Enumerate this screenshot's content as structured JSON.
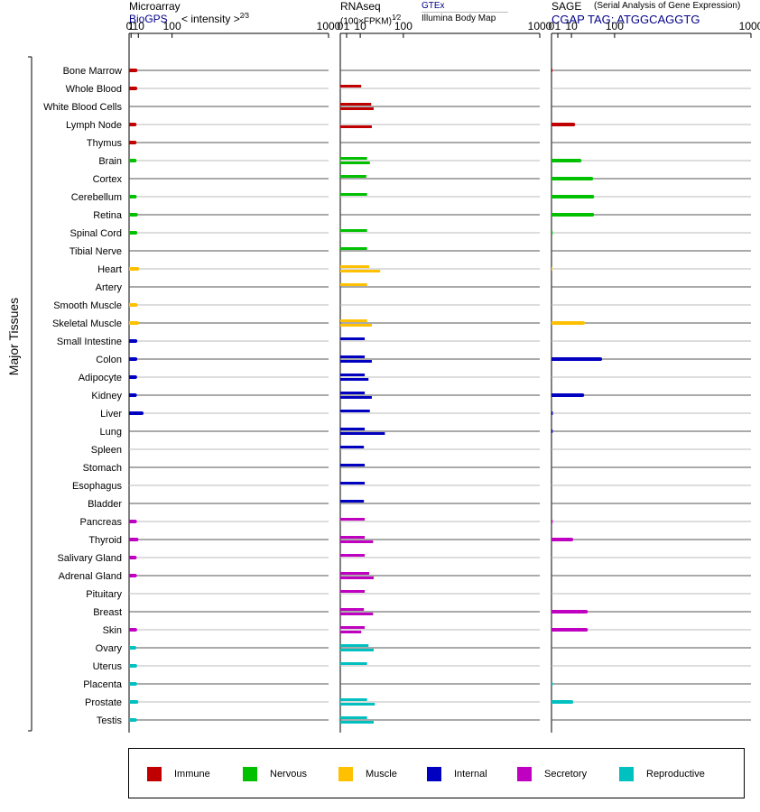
{
  "panels": {
    "microarray": {
      "title": "Microarray",
      "source": "BioGPS",
      "units": "< intensity >",
      "units_exp": "2⁄3"
    },
    "rnaseq": {
      "title": "RNAseq",
      "units": "(100×FPKM)",
      "units_exp": "1⁄2",
      "series_a": "GTEx",
      "series_b": "Illumina Body Map"
    },
    "sage": {
      "title": "SAGE",
      "title_note": "(Serial Analysis of Gene Expression)",
      "tag": "CGAP TAG: ATGGCAGGTG"
    }
  },
  "axis": {
    "ticks": [
      "0",
      "1",
      "10",
      "100",
      "1000"
    ],
    "tick_values": [
      0,
      1,
      10,
      100,
      1000
    ],
    "ylabel": "Major Tissues"
  },
  "legend": [
    {
      "name": "Immune",
      "color": "#c00000"
    },
    {
      "name": "Nervous",
      "color": "#00c000"
    },
    {
      "name": "Muscle",
      "color": "#ffc000"
    },
    {
      "name": "Internal",
      "color": "#0000c0"
    },
    {
      "name": "Secretory",
      "color": "#c000c0"
    },
    {
      "name": "Reproductive",
      "color": "#00c0c0"
    }
  ],
  "chart_data": {
    "type": "bar",
    "orientation": "horizontal",
    "scale": "x plotted as 0.67th-power (microarray) / sqrt (RNAseq, SAGE); ticks 0-1000",
    "categories": [
      "Bone Marrow",
      "Whole Blood",
      "White Blood Cells",
      "Lymph Node",
      "Thymus",
      "Brain",
      "Cortex",
      "Cerebellum",
      "Retina",
      "Spinal Cord",
      "Tibial Nerve",
      "Heart",
      "Artery",
      "Smooth Muscle",
      "Skeletal Muscle",
      "Small Intestine",
      "Colon",
      "Adipocyte",
      "Kidney",
      "Liver",
      "Lung",
      "Spleen",
      "Stomach",
      "Esophagus",
      "Bladder",
      "Pancreas",
      "Thyroid",
      "Salivary Gland",
      "Adrenal Gland",
      "Pituitary",
      "Breast",
      "Skin",
      "Ovary",
      "Uterus",
      "Placenta",
      "Prostate",
      "Testis"
    ],
    "system": [
      "Immune",
      "Immune",
      "Immune",
      "Immune",
      "Immune",
      "Nervous",
      "Nervous",
      "Nervous",
      "Nervous",
      "Nervous",
      "Nervous",
      "Muscle",
      "Muscle",
      "Muscle",
      "Muscle",
      "Internal",
      "Internal",
      "Internal",
      "Internal",
      "Internal",
      "Internal",
      "Internal",
      "Internal",
      "Internal",
      "Internal",
      "Secretory",
      "Secretory",
      "Secretory",
      "Secretory",
      "Secretory",
      "Secretory",
      "Secretory",
      "Reproductive",
      "Reproductive",
      "Reproductive",
      "Reproductive",
      "Reproductive"
    ],
    "series": [
      {
        "name": "Microarray",
        "values": [
          6,
          5.8,
          null,
          4.8,
          4.8,
          4.8,
          null,
          5,
          6.5,
          5.8,
          null,
          8.5,
          null,
          6.2,
          8.2,
          5.8,
          5.8,
          5.5,
          5.2,
          16,
          null,
          null,
          null,
          null,
          null,
          5.2,
          7.5,
          5,
          5.2,
          null,
          null,
          5.5,
          4.5,
          5.5,
          5.5,
          7.2,
          5.2
        ]
      },
      {
        "name": "GTEx",
        "values": [
          null,
          11,
          24,
          null,
          null,
          18,
          17,
          18,
          null,
          18,
          18,
          21,
          18,
          null,
          18,
          15,
          15,
          15,
          15,
          22,
          15,
          14,
          15,
          15,
          14,
          15,
          15,
          15,
          21,
          15,
          14,
          15,
          20,
          18,
          null,
          18,
          18
        ]
      },
      {
        "name": "Illumina Body Map",
        "values": [
          null,
          null,
          28,
          25,
          null,
          22,
          null,
          null,
          null,
          null,
          null,
          40,
          null,
          null,
          25,
          null,
          25,
          20,
          25,
          null,
          50,
          null,
          null,
          null,
          null,
          null,
          27,
          null,
          28,
          null,
          27,
          11,
          28,
          null,
          null,
          30,
          28
        ]
      },
      {
        "name": "SAGE",
        "values": [
          0.02,
          null,
          null,
          12,
          null,
          20,
          40,
          42,
          42,
          0.03,
          null,
          0.02,
          null,
          null,
          25,
          null,
          60,
          null,
          24,
          0.04,
          0.03,
          null,
          null,
          null,
          null,
          0.03,
          10,
          null,
          null,
          null,
          30,
          30,
          null,
          null,
          0.03,
          10,
          null
        ]
      }
    ],
    "xlim": [
      0,
      1000
    ]
  }
}
